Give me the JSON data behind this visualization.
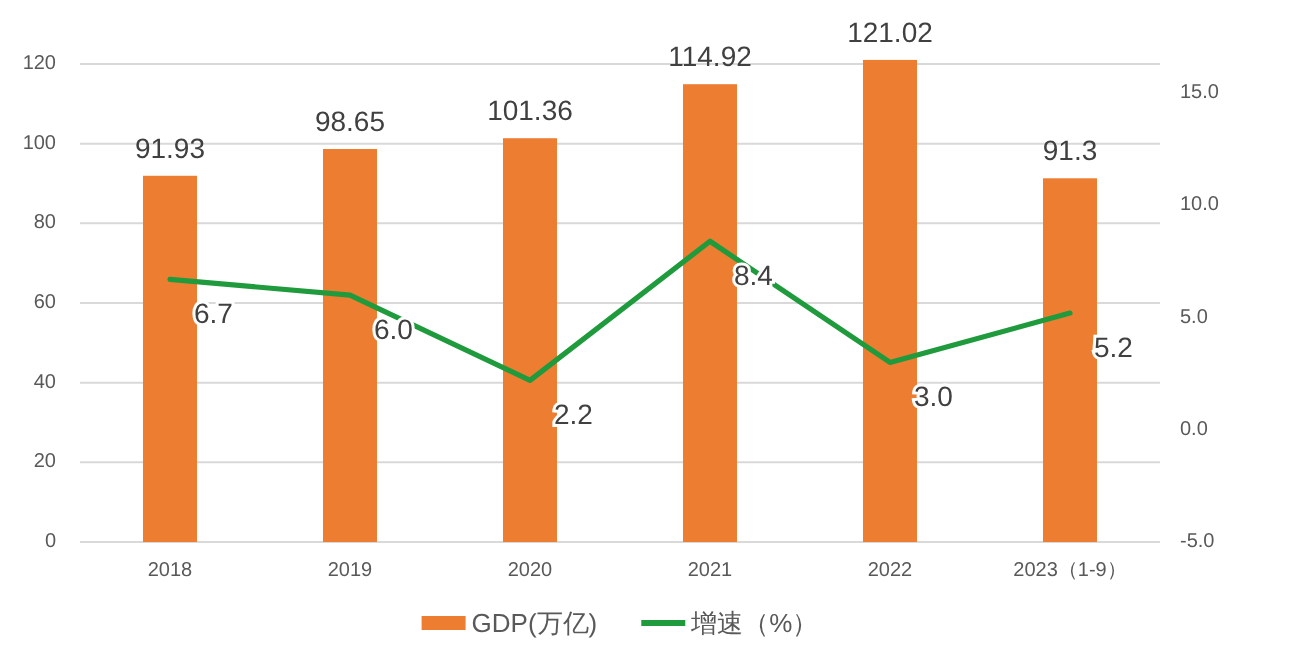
{
  "chart_data": {
    "type": "bar",
    "categories": [
      "2018",
      "2019",
      "2020",
      "2021",
      "2022",
      "2023（1-9）"
    ],
    "series": [
      {
        "name": "GDP(万亿)",
        "color": "#ed7d31",
        "values": [
          91.93,
          98.65,
          101.36,
          114.92,
          121.02,
          91.3
        ],
        "value_labels": [
          "91.93",
          "98.65",
          "101.36",
          "114.92",
          "121.02",
          "91.3"
        ]
      },
      {
        "name": "增速（%）",
        "type": "line",
        "axis": "y2",
        "color": "#1f9a3c",
        "values": [
          6.7,
          6.0,
          2.2,
          8.4,
          3.0,
          5.2
        ],
        "value_labels": [
          "6.7",
          "6.0",
          "2.2",
          "8.4",
          "3.0",
          "5.2"
        ]
      }
    ],
    "ylim": [
      0,
      122
    ],
    "yticks": [
      0,
      20,
      40,
      60,
      80,
      100,
      120
    ],
    "y2lim": [
      -5,
      16.3
    ],
    "y2ticks": [
      {
        "value": -5,
        "label": "-5.0"
      },
      {
        "value": 0,
        "label": "0.0"
      },
      {
        "value": 5,
        "label": "5.0"
      },
      {
        "value": 10,
        "label": "10.0"
      },
      {
        "value": 15,
        "label": "15.0"
      }
    ],
    "grid": "y",
    "legend": "bottom"
  }
}
